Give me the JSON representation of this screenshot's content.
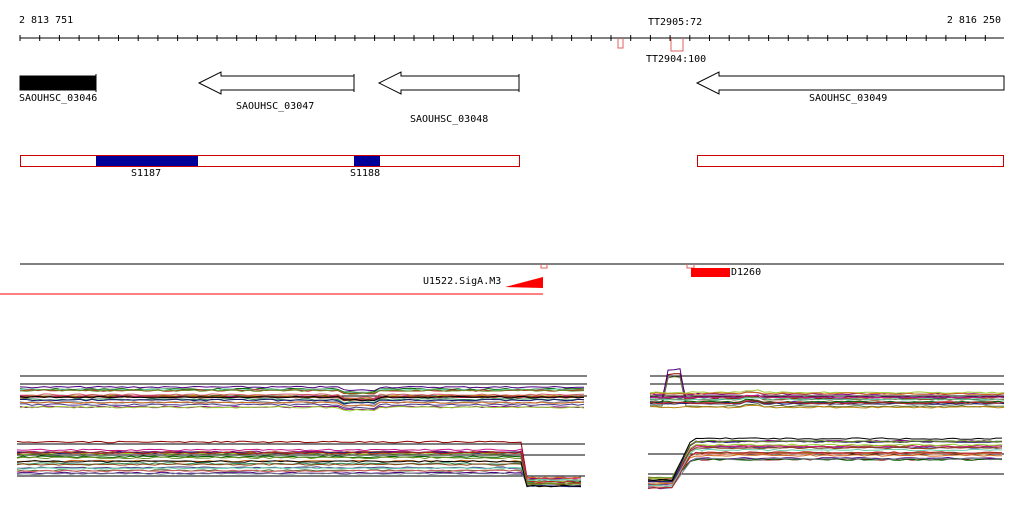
{
  "coordinates": {
    "start": "2 813 751",
    "end": "2 816 250"
  },
  "terminators": [
    {
      "label": "TT2905:72"
    },
    {
      "label": "TT2904:100"
    }
  ],
  "genes": [
    {
      "label": "SAOUHSC_03046",
      "strand": "+",
      "fill": "#000000"
    },
    {
      "label": "SAOUHSC_03047",
      "strand": "-",
      "fill": "#ffffff"
    },
    {
      "label": "SAOUHSC_03048",
      "strand": "-",
      "fill": "#ffffff"
    },
    {
      "label": "SAOUHSC_03049",
      "strand": "-",
      "fill": "#ffffff"
    }
  ],
  "segments": [
    {
      "label": "S1187",
      "color": "#000099"
    },
    {
      "label": "S1188",
      "color": "#000099"
    }
  ],
  "promoters": [
    {
      "label": "U1522.SigA.M3",
      "color": "#ff0000"
    },
    {
      "label": "D1260",
      "color": "#ff0000"
    }
  ],
  "colors": {
    "axis": "#000000",
    "segment_outline": "#cc0000",
    "promoter": "#ff0000"
  }
}
